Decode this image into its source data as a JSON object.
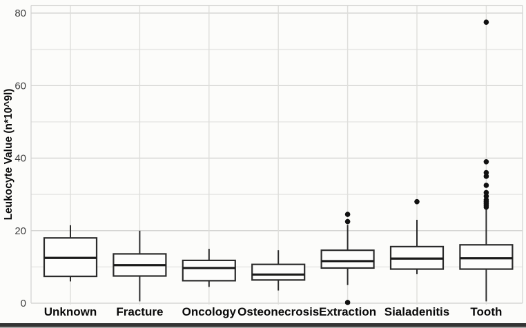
{
  "chart_data": {
    "type": "box",
    "title": "",
    "xlabel": "",
    "ylabel": "Leukocyte Value (n*10^9l)",
    "ylim": [
      0,
      80
    ],
    "yticks": [
      0,
      20,
      40,
      60,
      80
    ],
    "minor_gridlines": [
      10,
      30,
      50,
      70
    ],
    "grid": "on",
    "legend": "none",
    "categories": [
      "Unknown",
      "Fracture",
      "Oncology",
      "Osteonecrosis",
      "Extraction",
      "Sialadenitis",
      "Tooth"
    ],
    "series": [
      {
        "category": "Unknown",
        "whisker_low": 6,
        "q1": 7.4,
        "median": 12.5,
        "q3": 18,
        "whisker_high": 21.5,
        "outliers": []
      },
      {
        "category": "Fracture",
        "whisker_low": 0.5,
        "q1": 7.5,
        "median": 10.5,
        "q3": 13.6,
        "whisker_high": 20,
        "outliers": []
      },
      {
        "category": "Oncology",
        "whisker_low": 4.5,
        "q1": 6.2,
        "median": 9.7,
        "q3": 11.8,
        "whisker_high": 15,
        "outliers": []
      },
      {
        "category": "Osteonecrosis",
        "whisker_low": 3.5,
        "q1": 6.4,
        "median": 7.9,
        "q3": 10.7,
        "whisker_high": 14.6,
        "outliers": []
      },
      {
        "category": "Extraction",
        "whisker_low": 5,
        "q1": 9.7,
        "median": 11.6,
        "q3": 14.6,
        "whisker_high": 21.6,
        "outliers": [
          24.5,
          22.5,
          0.2
        ]
      },
      {
        "category": "Sialadenitis",
        "whisker_low": 8,
        "q1": 9.4,
        "median": 12.3,
        "q3": 15.6,
        "whisker_high": 23,
        "outliers": [
          28
        ]
      },
      {
        "category": "Tooth",
        "whisker_low": 0.5,
        "q1": 9.4,
        "median": 12.4,
        "q3": 16.1,
        "whisker_high": 26,
        "outliers": [
          77.5,
          39,
          36,
          35,
          32.5,
          30.5,
          29.5,
          28.5,
          28,
          27.5,
          27,
          26.5
        ]
      }
    ],
    "colors": {
      "background": "#fcfcfa",
      "major_gridline": "#d6d6d4",
      "minor_gridline": "#e7e7e5",
      "category_gridline": "#dededb",
      "panel_border": "#d2d2d0",
      "box_stroke": "#2b2b2b",
      "box_fill": "#fdfdfc",
      "median_stroke": "#1a1a1a",
      "outlier_fill": "#111111",
      "tick_label": "#3f3f3f",
      "category_label": "#0a0a0a",
      "axis_title": "#0a0a0a",
      "bottom_bar": "#343434",
      "bottom_bar_edge": "#b5b5b3"
    }
  }
}
